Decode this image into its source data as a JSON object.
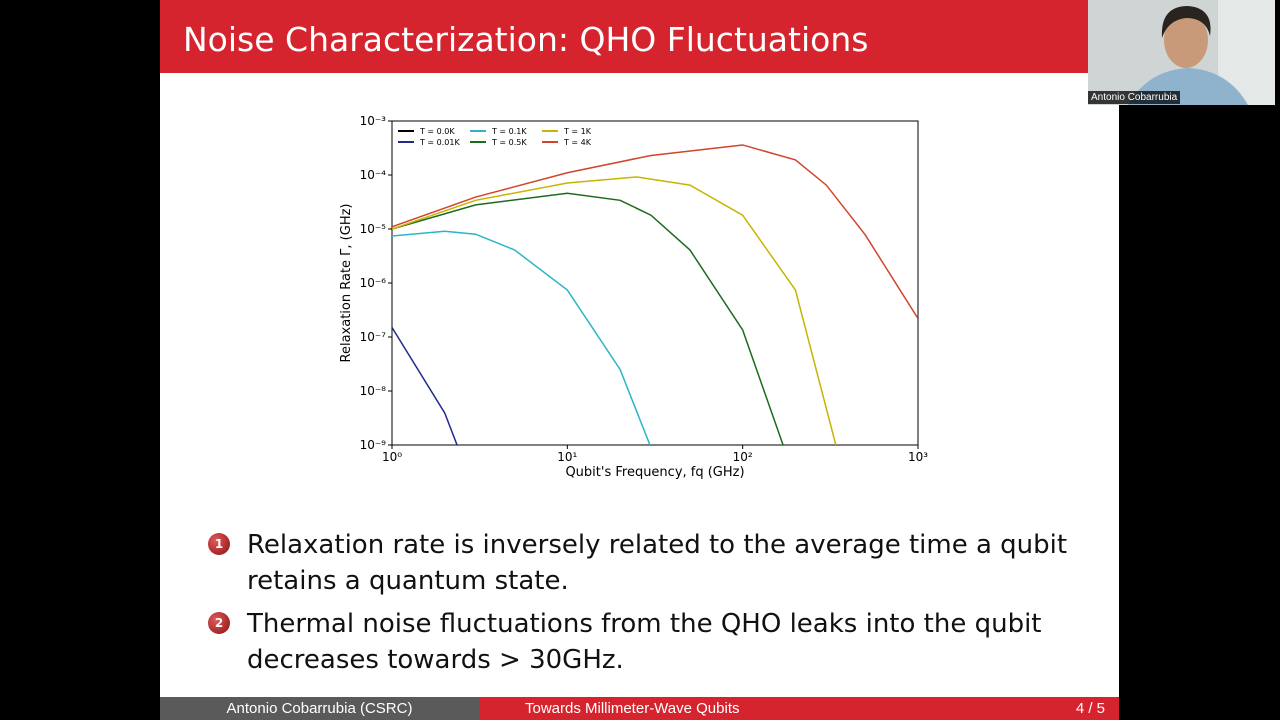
{
  "slide": {
    "title": "Noise Characterization: QHO Fluctuations",
    "bullets": [
      {
        "marker": "1",
        "text": "Relaxation rate is inversely related to the average time a qubit retains a quantum state."
      },
      {
        "marker": "2",
        "text": "Thermal noise fluctuations from the QHO leaks into the qubit decreases towards > 30GHz."
      }
    ],
    "footer": {
      "author": "Antonio Cobarrubia (CSRC)",
      "talk": "Towards Millimeter-Wave Qubits",
      "page": "4 / 5"
    }
  },
  "participant": {
    "name": "Antonio Cobarrubia"
  },
  "chart_data": {
    "type": "line",
    "x_label": "Qubit's Frequency, fq (GHz)",
    "y_label": "Relaxation Rate Γ, (GHz)",
    "x_scale": "log",
    "y_scale": "log",
    "xlim": [
      1,
      1000
    ],
    "ylim": [
      1e-09,
      0.001
    ],
    "xticks": [
      {
        "value": 1,
        "label": "10⁰"
      },
      {
        "value": 10,
        "label": "10¹"
      },
      {
        "value": 100,
        "label": "10²"
      },
      {
        "value": 1000,
        "label": "10³"
      }
    ],
    "yticks": [
      {
        "value": 1e-09,
        "label": "10⁻⁹"
      },
      {
        "value": 1e-08,
        "label": "10⁻⁸"
      },
      {
        "value": 1e-07,
        "label": "10⁻⁷"
      },
      {
        "value": 1e-06,
        "label": "10⁻⁶"
      },
      {
        "value": 1e-05,
        "label": "10⁻⁵"
      },
      {
        "value": 0.0001,
        "label": "10⁻⁴"
      },
      {
        "value": 0.001,
        "label": "10⁻³"
      }
    ],
    "legend": "upper left",
    "series": [
      {
        "name": "T = 0.0K",
        "color": "#000000",
        "x": [],
        "values": []
      },
      {
        "name": "T = 0.01K",
        "color": "#1f2a8c",
        "x": [
          1,
          2,
          2.35
        ],
        "values": [
          1.5e-07,
          3.9e-09,
          1e-09
        ]
      },
      {
        "name": "T = 0.1K",
        "color": "#2cb5c8",
        "x": [
          1,
          2,
          3,
          5,
          10,
          20,
          29.6
        ],
        "values": [
          7.4e-06,
          9.1e-06,
          8e-06,
          4.1e-06,
          7.4e-07,
          2.5e-08,
          1e-09
        ]
      },
      {
        "name": "T = 0.5K",
        "color": "#1c6b1c",
        "x": [
          1,
          3,
          10,
          20,
          30,
          50,
          100,
          170
        ],
        "values": [
          1e-05,
          2.8e-05,
          4.6e-05,
          3.4e-05,
          1.8e-05,
          4.1e-06,
          1.35e-07,
          1e-09
        ]
      },
      {
        "name": "T = 1K",
        "color": "#c8b400",
        "x": [
          1,
          3,
          10,
          25,
          50,
          100,
          200,
          340
        ],
        "values": [
          1e-05,
          3.4e-05,
          7.1e-05,
          9.2e-05,
          6.5e-05,
          1.8e-05,
          7.4e-07,
          1e-09
        ]
      },
      {
        "name": "T = 4K",
        "color": "#d2442a",
        "x": [
          1,
          3,
          10,
          30,
          100,
          200,
          300,
          500,
          1000
        ],
        "values": [
          1.1e-05,
          3.9e-05,
          0.00011,
          0.00023,
          0.00036,
          0.00019,
          6.5e-05,
          7.8e-06,
          2.2e-07
        ]
      }
    ]
  }
}
